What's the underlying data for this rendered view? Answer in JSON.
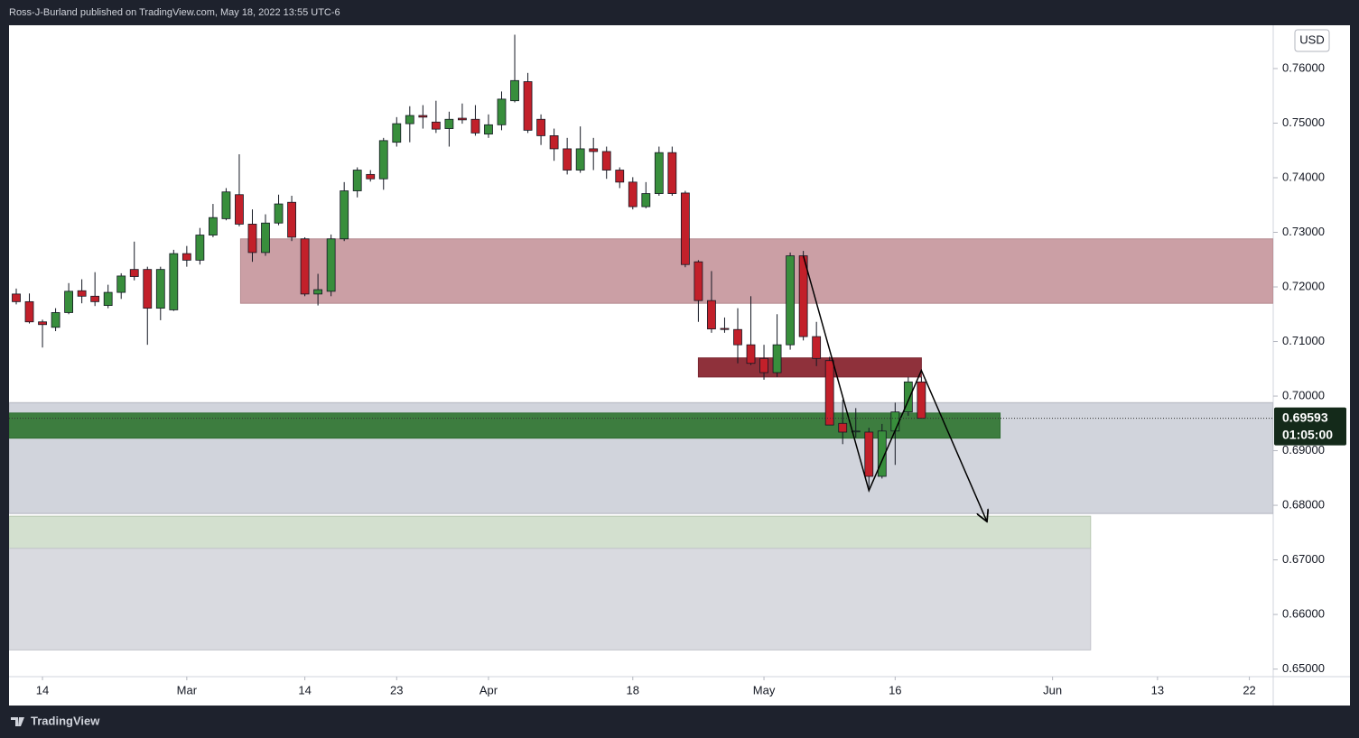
{
  "header": "Ross-J-Burland published on TradingView.com, May 18, 2022 13:55 UTC-6",
  "footer": "TradingView",
  "chart_data": {
    "type": "candlestick",
    "currency": "USD",
    "up_color": "#388e3c",
    "down_color": "#c2202a",
    "open": [
      0.7187,
      0.7173,
      0.7136,
      0.7126,
      0.7153,
      0.7193,
      0.7183,
      0.7166,
      0.719,
      0.7232,
      0.7232,
      0.7161,
      0.7158,
      0.7261,
      0.7249,
      0.7295,
      0.7325,
      0.7369,
      0.7315,
      0.7263,
      0.7317,
      0.7355,
      0.7288,
      0.7187,
      0.7192,
      0.7288,
      0.7376,
      0.7406,
      0.7398,
      0.7465,
      0.7499,
      0.7514,
      0.7502,
      0.749,
      0.7509,
      0.7507,
      0.748,
      0.7497,
      0.7541,
      0.7576,
      0.7507,
      0.7477,
      0.7453,
      0.7414,
      0.7453,
      0.7448,
      0.7414,
      0.7392,
      0.7347,
      0.7371,
      0.7446,
      0.7372,
      0.7246,
      0.7175,
      0.7124,
      0.7122,
      0.7094,
      0.7069,
      0.7043,
      0.7094,
      0.7257,
      0.7109,
      0.7065,
      0.695,
      0.6935,
      0.6934,
      0.6853,
      0.6936,
      0.6971,
      0.7026
    ],
    "high": [
      0.7197,
      0.7188,
      0.714,
      0.7161,
      0.7207,
      0.7214,
      0.7227,
      0.7204,
      0.7225,
      0.7283,
      0.7237,
      0.7237,
      0.7268,
      0.7275,
      0.7308,
      0.7352,
      0.7381,
      0.7443,
      0.7342,
      0.7333,
      0.7369,
      0.7367,
      0.7291,
      0.7224,
      0.7296,
      0.7392,
      0.7419,
      0.7414,
      0.7473,
      0.7511,
      0.7531,
      0.7533,
      0.7541,
      0.7521,
      0.7536,
      0.7533,
      0.7516,
      0.7558,
      0.7662,
      0.7592,
      0.7516,
      0.749,
      0.7473,
      0.7494,
      0.7473,
      0.7457,
      0.7419,
      0.7401,
      0.7392,
      0.7457,
      0.7457,
      0.7376,
      0.7249,
      0.7229,
      0.7144,
      0.7161,
      0.7183,
      0.7094,
      0.715,
      0.7263,
      0.7266,
      0.7136,
      0.7072,
      0.6993,
      0.6978,
      0.6942,
      0.6949,
      0.6988,
      0.7035,
      0.7035
    ],
    "low": [
      0.7168,
      0.7133,
      0.7089,
      0.7119,
      0.715,
      0.717,
      0.7165,
      0.7161,
      0.7178,
      0.7212,
      0.7094,
      0.7139,
      0.7156,
      0.7237,
      0.7241,
      0.7291,
      0.7322,
      0.7311,
      0.7246,
      0.7257,
      0.7313,
      0.7284,
      0.7183,
      0.7166,
      0.7183,
      0.7284,
      0.7364,
      0.7393,
      0.7378,
      0.7457,
      0.7465,
      0.749,
      0.7482,
      0.7457,
      0.7499,
      0.7477,
      0.7473,
      0.7487,
      0.7538,
      0.7482,
      0.746,
      0.7431,
      0.7406,
      0.7409,
      0.7414,
      0.7398,
      0.7381,
      0.7342,
      0.7344,
      0.7367,
      0.7367,
      0.7236,
      0.7136,
      0.7116,
      0.7116,
      0.706,
      0.7057,
      0.703,
      0.7035,
      0.7085,
      0.7102,
      0.7055,
      0.6947,
      0.6912,
      0.6924,
      0.6832,
      0.6849,
      0.6874,
      0.6964,
      0.6959
    ],
    "close": [
      0.7173,
      0.7136,
      0.7131,
      0.7153,
      0.7192,
      0.7183,
      0.7173,
      0.719,
      0.722,
      0.7219,
      0.7161,
      0.7232,
      0.7261,
      0.7249,
      0.7295,
      0.7327,
      0.7374,
      0.7315,
      0.7263,
      0.7317,
      0.7352,
      0.7291,
      0.7187,
      0.7195,
      0.7288,
      0.7376,
      0.7414,
      0.7398,
      0.7468,
      0.7499,
      0.7514,
      0.7511,
      0.7489,
      0.7507,
      0.7506,
      0.7482,
      0.7497,
      0.7544,
      0.7578,
      0.7487,
      0.7477,
      0.7453,
      0.7414,
      0.7453,
      0.7448,
      0.7414,
      0.7392,
      0.7347,
      0.7371,
      0.7446,
      0.7371,
      0.7241,
      0.7175,
      0.7123,
      0.7122,
      0.7094,
      0.706,
      0.7043,
      0.7094,
      0.7257,
      0.7109,
      0.7069,
      0.6947,
      0.6934,
      0.6936,
      0.6853,
      0.6936,
      0.6971,
      0.7026,
      0.69593
    ],
    "last_price_label": "0.69593",
    "countdown": "01:05:00",
    "xlim": [
      -0.55,
      95.82
    ],
    "xticks": [
      {
        "value": 2,
        "label": "14"
      },
      {
        "value": 13,
        "label": "Mar"
      },
      {
        "value": 22,
        "label": "14"
      },
      {
        "value": 29,
        "label": "23"
      },
      {
        "value": 36,
        "label": "Apr"
      },
      {
        "value": 47,
        "label": "18"
      },
      {
        "value": 57,
        "label": "May"
      },
      {
        "value": 67,
        "label": "16"
      },
      {
        "value": 79,
        "label": "Jun"
      },
      {
        "value": 87,
        "label": "13"
      },
      {
        "value": 94,
        "label": "22"
      }
    ],
    "ylim": [
      0.64861,
      0.76793
    ],
    "yticks": [
      {
        "value": 0.65,
        "label": "0.65000"
      },
      {
        "value": 0.66,
        "label": "0.66000"
      },
      {
        "value": 0.67,
        "label": "0.67000"
      },
      {
        "value": 0.68,
        "label": "0.68000"
      },
      {
        "value": 0.69,
        "label": "0.69000"
      },
      {
        "value": 0.7,
        "label": "0.70000"
      },
      {
        "value": 0.71,
        "label": "0.71000"
      },
      {
        "value": 0.72,
        "label": "0.72000"
      },
      {
        "value": 0.73,
        "label": "0.73000"
      },
      {
        "value": 0.74,
        "label": "0.74000"
      },
      {
        "value": 0.75,
        "label": "0.75000"
      },
      {
        "value": 0.76,
        "label": "0.76000"
      }
    ],
    "zones": [
      {
        "top": 0.6988,
        "bottom": 0.6785,
        "start": -0.55,
        "end": 95.82,
        "color": "#d1d4dc",
        "border": "#b2b5be"
      },
      {
        "top": 0.678,
        "bottom": 0.6721,
        "start": -0.55,
        "end": 81.9,
        "color": "#d3e0cf",
        "border": "#b8c8b2"
      },
      {
        "top": 0.6721,
        "bottom": 0.6535,
        "start": -0.55,
        "end": 81.9,
        "color": "#d9dae0",
        "border": "#c3c5cc"
      },
      {
        "top": 0.7288,
        "bottom": 0.717,
        "start": 17.1,
        "end": 95.82,
        "color": "#cb9fa5",
        "border": "#b58a90"
      },
      {
        "top": 0.6969,
        "bottom": 0.6923,
        "start": -0.55,
        "end": 75.0,
        "color": "#3d7d3f",
        "border": "#2c6a2f"
      },
      {
        "top": 0.707,
        "bottom": 0.7035,
        "start": 52,
        "end": 69,
        "color": "#8f313b",
        "border": "#7a2630"
      }
    ],
    "arrow": {
      "x": [
        60,
        65,
        69,
        74
      ],
      "y": [
        0.7257,
        0.6827,
        0.7047,
        0.677
      ]
    }
  }
}
